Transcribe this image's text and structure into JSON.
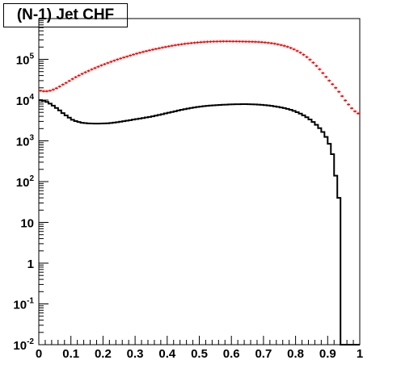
{
  "chart_data": {
    "type": "histogram",
    "title": "(N-1) Jet CHF",
    "xlabel": "",
    "ylabel": "",
    "xlim": [
      0,
      1
    ],
    "ylim": [
      0.01,
      1000000
    ],
    "yscale": "log",
    "grid": false,
    "legend": "none",
    "x_ticks": [
      {
        "value": 0,
        "label": "0"
      },
      {
        "value": 0.1,
        "label": "0.1"
      },
      {
        "value": 0.2,
        "label": "0.2"
      },
      {
        "value": 0.3,
        "label": "0.3"
      },
      {
        "value": 0.4,
        "label": "0.4"
      },
      {
        "value": 0.5,
        "label": "0.5"
      },
      {
        "value": 0.6,
        "label": "0.6"
      },
      {
        "value": 0.7,
        "label": "0.7"
      },
      {
        "value": 0.8,
        "label": "0.8"
      },
      {
        "value": 0.9,
        "label": "0.9"
      },
      {
        "value": 1,
        "label": "1"
      }
    ],
    "y_ticks": [
      {
        "value": 0.01,
        "base": "10",
        "exp": "-2"
      },
      {
        "value": 0.1,
        "base": "10",
        "exp": "-1"
      },
      {
        "value": 1,
        "base": "1",
        "exp": ""
      },
      {
        "value": 10,
        "base": "10",
        "exp": ""
      },
      {
        "value": 100,
        "base": "10",
        "exp": "2"
      },
      {
        "value": 1000,
        "base": "10",
        "exp": "3"
      },
      {
        "value": 10000,
        "base": "10",
        "exp": "4"
      },
      {
        "value": 100000,
        "base": "10",
        "exp": "5"
      }
    ],
    "series": [
      {
        "color": "#000000",
        "style": "step",
        "x": [
          0,
          0.01,
          0.02,
          0.03,
          0.04,
          0.05,
          0.06,
          0.07,
          0.08,
          0.09,
          0.1,
          0.11,
          0.12,
          0.13,
          0.14,
          0.15,
          0.16,
          0.17,
          0.18,
          0.19,
          0.2,
          0.21,
          0.22,
          0.23,
          0.24,
          0.25,
          0.26,
          0.27,
          0.28,
          0.29,
          0.3,
          0.31,
          0.32,
          0.33,
          0.34,
          0.35,
          0.36,
          0.37,
          0.38,
          0.39,
          0.4,
          0.41,
          0.42,
          0.43,
          0.44,
          0.45,
          0.46,
          0.47,
          0.48,
          0.49,
          0.5,
          0.51,
          0.52,
          0.53,
          0.54,
          0.55,
          0.56,
          0.57,
          0.58,
          0.59,
          0.6,
          0.61,
          0.62,
          0.63,
          0.64,
          0.65,
          0.66,
          0.67,
          0.68,
          0.69,
          0.7,
          0.71,
          0.72,
          0.73,
          0.74,
          0.75,
          0.76,
          0.77,
          0.78,
          0.79,
          0.8,
          0.81,
          0.82,
          0.83,
          0.84,
          0.85,
          0.86,
          0.87,
          0.88,
          0.89,
          0.9,
          0.91,
          0.92,
          0.93,
          0.94,
          0.95,
          0.96,
          0.97,
          0.98,
          0.99
        ],
        "values": [
          10000,
          9700,
          9000,
          8200,
          7300,
          6400,
          5600,
          4800,
          4200,
          3700,
          3300,
          3050,
          2900,
          2780,
          2720,
          2680,
          2660,
          2650,
          2650,
          2660,
          2680,
          2700,
          2740,
          2800,
          2870,
          2950,
          3030,
          3120,
          3220,
          3320,
          3420,
          3520,
          3630,
          3750,
          3870,
          4000,
          4150,
          4320,
          4500,
          4700,
          4900,
          5100,
          5320,
          5550,
          5780,
          6000,
          6200,
          6400,
          6600,
          6780,
          6950,
          7100,
          7230,
          7340,
          7440,
          7530,
          7610,
          7680,
          7750,
          7810,
          7860,
          7900,
          7930,
          7940,
          7940,
          7920,
          7880,
          7820,
          7740,
          7640,
          7520,
          7380,
          7220,
          7040,
          6840,
          6610,
          6360,
          6080,
          5770,
          5430,
          5060,
          4660,
          4240,
          3800,
          3340,
          2900,
          2470,
          2050,
          1650,
          1250,
          850,
          470,
          140,
          40,
          0,
          0,
          0,
          0,
          0,
          0
        ]
      },
      {
        "color": "#ff0000",
        "style": "markers",
        "x": [
          0,
          0.01,
          0.02,
          0.03,
          0.04,
          0.05,
          0.06,
          0.07,
          0.08,
          0.09,
          0.1,
          0.11,
          0.12,
          0.13,
          0.14,
          0.15,
          0.16,
          0.17,
          0.18,
          0.19,
          0.2,
          0.21,
          0.22,
          0.23,
          0.24,
          0.25,
          0.26,
          0.27,
          0.28,
          0.29,
          0.3,
          0.31,
          0.32,
          0.33,
          0.34,
          0.35,
          0.36,
          0.37,
          0.38,
          0.39,
          0.4,
          0.41,
          0.42,
          0.43,
          0.44,
          0.45,
          0.46,
          0.47,
          0.48,
          0.49,
          0.5,
          0.51,
          0.52,
          0.53,
          0.54,
          0.55,
          0.56,
          0.57,
          0.58,
          0.59,
          0.6,
          0.61,
          0.62,
          0.63,
          0.64,
          0.65,
          0.66,
          0.67,
          0.68,
          0.69,
          0.7,
          0.71,
          0.72,
          0.73,
          0.74,
          0.75,
          0.76,
          0.77,
          0.78,
          0.79,
          0.8,
          0.81,
          0.82,
          0.83,
          0.84,
          0.85,
          0.86,
          0.87,
          0.88,
          0.89,
          0.9,
          0.91,
          0.92,
          0.93,
          0.94,
          0.95,
          0.96,
          0.97,
          0.98,
          0.99
        ],
        "values": [
          17000,
          16500,
          16500,
          17000,
          18000,
          19500,
          21500,
          24000,
          26500,
          29500,
          33000,
          36500,
          40000,
          44000,
          48000,
          52000,
          56500,
          61000,
          66000,
          71000,
          76000,
          81500,
          87000,
          93000,
          99000,
          105000,
          111000,
          117000,
          124000,
          131000,
          138000,
          145000,
          152000,
          159000,
          166000,
          173000,
          180000,
          187000,
          194000,
          201000,
          208000,
          215000,
          222000,
          228000,
          234000,
          240000,
          245000,
          250000,
          255000,
          259000,
          263000,
          266000,
          269000,
          271000,
          273000,
          274000,
          275000,
          276000,
          276000,
          276000,
          275000,
          275000,
          274000,
          273000,
          272000,
          271000,
          270000,
          268000,
          266000,
          263000,
          259000,
          254000,
          248000,
          241000,
          233000,
          224000,
          214000,
          203000,
          190000,
          176000,
          161000,
          146000,
          130000,
          114000,
          98000,
          83000,
          69000,
          57000,
          46000,
          37000,
          30000,
          24500,
          20000,
          16000,
          12500,
          9800,
          7800,
          6300,
          5300,
          4700
        ]
      }
    ]
  }
}
